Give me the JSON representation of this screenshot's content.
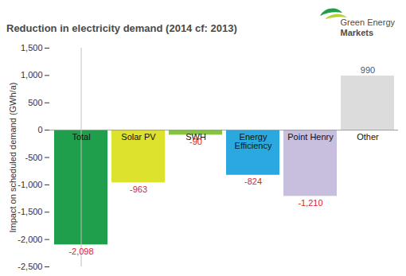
{
  "chart_data": {
    "type": "bar",
    "title": "Reduction in electricity demand (2014 cf: 2013)",
    "annotations": [
      "Green Energy",
      "Markets"
    ],
    "y_label": "Impact on scheduled demand (GWh/a)",
    "categories": [
      "Total",
      "Solar PV",
      "SWH",
      "Energy Efficiency",
      "Point Henry",
      "Other"
    ],
    "values": [
      -2098,
      -963,
      -90,
      -824,
      -1210,
      990
    ],
    "value_labels": [
      "-2,098",
      "-963",
      "-90",
      "-824",
      "-1,210",
      "990"
    ],
    "colors": [
      "#1f9e4b",
      "#dde22c",
      "#86c440",
      "#2aa9e0",
      "#c8bedd",
      "#dcdcdc"
    ],
    "ylim": [
      -2500,
      1500
    ],
    "yticks": [
      {
        "value": -2500,
        "label": "-2,500"
      },
      {
        "value": -2000,
        "label": "-2,000"
      },
      {
        "value": -1500,
        "label": "-1,500"
      },
      {
        "value": -1000,
        "label": "-1,000"
      },
      -500,
      0,
      500,
      {
        "value": 1000,
        "label": "1,000"
      },
      {
        "value": 1500,
        "label": "1,500"
      }
    ],
    "grid": false,
    "data_labels": true
  }
}
